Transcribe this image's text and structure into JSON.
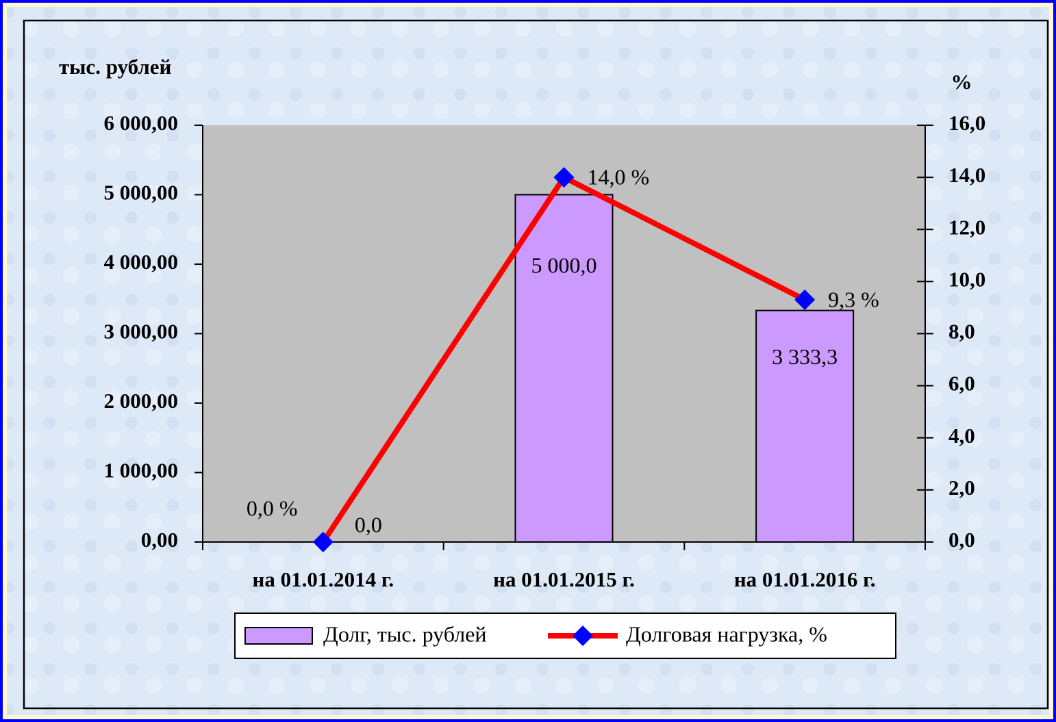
{
  "chart_data": {
    "type": "bar_line",
    "ylabel": "тыс. рублей",
    "y2label": "%",
    "categories": [
      "на 01.01.2014 г.",
      "на 01.01.2015 г.",
      "на 01.01.2016 г."
    ],
    "series": [
      {
        "name": "Долг, тыс. рублей",
        "type": "bar",
        "color": "#cc99ff",
        "values": [
          0,
          5000,
          3333.3
        ],
        "value_labels": [
          "0,0",
          "5 000,0",
          "3 333,3"
        ]
      },
      {
        "name": "Долговая нагрузка, %",
        "type": "line",
        "axis": "y2",
        "color": "#ff0000",
        "marker_color": "#0000ff",
        "values": [
          0,
          14,
          9.3
        ],
        "value_labels": [
          "0,0 %",
          "14,0 %",
          "9,3 %"
        ]
      }
    ],
    "ylim": [
      0,
      6000
    ],
    "yticks": [
      {
        "value": 0,
        "label": "0,00"
      },
      {
        "value": 1000,
        "label": "1 000,00"
      },
      {
        "value": 2000,
        "label": "2 000,00"
      },
      {
        "value": 3000,
        "label": "3 000,00"
      },
      {
        "value": 4000,
        "label": "4 000,00"
      },
      {
        "value": 5000,
        "label": "5 000,00"
      },
      {
        "value": 6000,
        "label": "6 000,00"
      }
    ],
    "y2lim": [
      0,
      16
    ],
    "y2ticks": [
      {
        "value": 0,
        "label": "0,0"
      },
      {
        "value": 2,
        "label": "2,0"
      },
      {
        "value": 4,
        "label": "4,0"
      },
      {
        "value": 6,
        "label": "6,0"
      },
      {
        "value": 8,
        "label": "8,0"
      },
      {
        "value": 10,
        "label": "10,0"
      },
      {
        "value": 12,
        "label": "12,0"
      },
      {
        "value": 14,
        "label": "14,0"
      },
      {
        "value": 16,
        "label": "16,0"
      }
    ],
    "legend": "bottom"
  }
}
